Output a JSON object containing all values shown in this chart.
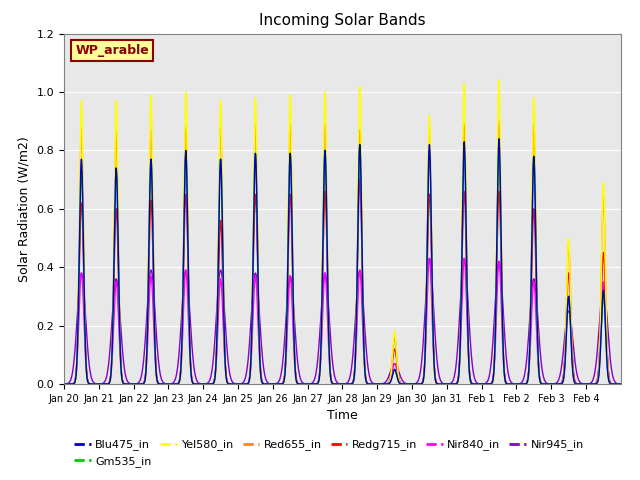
{
  "title": "Incoming Solar Bands",
  "xlabel": "Time",
  "ylabel": "Solar Radiation (W/m2)",
  "annotation_label": "WP_arable",
  "annotation_color": "#8B0000",
  "annotation_bg": "#FFFF99",
  "annotation_border": "#8B0000",
  "ylim": [
    0,
    1.2
  ],
  "bg_color": "#E8E8E8",
  "series_colors": {
    "Blu475_in": "#0000CC",
    "Gm535_in": "#00CC00",
    "Yel580_in": "#FFFF00",
    "Red655_in": "#FF8800",
    "Redg715_in": "#FF0000",
    "Nir840_in": "#FF00FF",
    "Nir945_in": "#8800CC"
  },
  "tick_labels": [
    "Jan 20",
    "Jan 21",
    "Jan 22",
    "Jan 23",
    "Jan 24",
    "Jan 25",
    "Jan 26",
    "Jan 27",
    "Jan 28",
    "Jan 29",
    "Jan 30",
    "Jan 31",
    "Feb 1",
    "Feb 2",
    "Feb 3",
    "Feb 4"
  ],
  "peak_fractions": {
    "Yel580_in": [
      0.97,
      0.97,
      0.99,
      1.0,
      0.97,
      0.98,
      0.99,
      1.0,
      1.02,
      0.18,
      0.92,
      1.03,
      1.04,
      0.98,
      0.5,
      0.69
    ],
    "Red655_in": [
      0.88,
      0.86,
      0.87,
      0.88,
      0.88,
      0.89,
      0.89,
      0.89,
      0.87,
      0.16,
      0.88,
      0.89,
      0.9,
      0.89,
      0.48,
      0.64
    ],
    "Redg715_in": [
      0.62,
      0.6,
      0.63,
      0.65,
      0.56,
      0.65,
      0.65,
      0.66,
      0.7,
      0.12,
      0.65,
      0.66,
      0.66,
      0.6,
      0.38,
      0.45
    ],
    "Nir840_in": [
      0.38,
      0.35,
      0.37,
      0.39,
      0.36,
      0.37,
      0.37,
      0.38,
      0.39,
      0.07,
      0.43,
      0.43,
      0.42,
      0.35,
      0.3,
      0.35
    ],
    "Blu475_in": [
      0.77,
      0.74,
      0.77,
      0.8,
      0.77,
      0.79,
      0.79,
      0.8,
      0.82,
      0.05,
      0.82,
      0.83,
      0.84,
      0.78,
      0.3,
      0.32
    ],
    "Gm535_in": [
      0.73,
      0.73,
      0.77,
      0.79,
      0.77,
      0.79,
      0.79,
      0.8,
      0.82,
      0.05,
      0.8,
      0.8,
      0.8,
      0.78,
      0.3,
      0.31
    ],
    "Nir945_in": [
      0.38,
      0.36,
      0.39,
      0.39,
      0.39,
      0.38,
      0.37,
      0.38,
      0.39,
      0.07,
      0.43,
      0.43,
      0.42,
      0.36,
      0.25,
      0.33
    ]
  },
  "series_widths": {
    "Yel580_in": 0.055,
    "Red655_in": 0.06,
    "Redg715_in": 0.065,
    "Nir840_in": 0.07,
    "Blu475_in": 0.06,
    "Gm535_in": 0.062,
    "Nir945_in": 0.12
  },
  "days_total": 16,
  "points_per_day": 500,
  "legend_order": [
    "Blu475_in",
    "Gm535_in",
    "Yel580_in",
    "Red655_in",
    "Redg715_in",
    "Nir840_in",
    "Nir945_in"
  ],
  "plot_order": [
    "Nir945_in",
    "Nir840_in",
    "Redg715_in",
    "Red655_in",
    "Yel580_in",
    "Gm535_in",
    "Blu475_in"
  ]
}
